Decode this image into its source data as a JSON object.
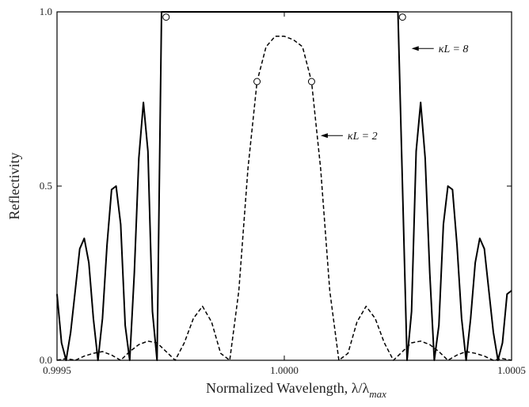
{
  "chart_data": {
    "type": "line",
    "title": "",
    "xlabel": "Normalized Wavelength, λ/λ",
    "xlabel_sub": "max",
    "ylabel": "Reflectivity",
    "xlim": [
      0.9995,
      1.0005
    ],
    "ylim": [
      0.0,
      1.0
    ],
    "x_ticks": [
      0.9995,
      1.0,
      1.0005
    ],
    "x_tick_labels": [
      "0.9995",
      "1.0000",
      "1.0005"
    ],
    "y_ticks": [
      0.0,
      0.5,
      1.0
    ],
    "y_tick_labels": [
      "0.0",
      "0.5",
      "1.0"
    ],
    "grid": false,
    "legend": "none",
    "series": [
      {
        "style": "solid",
        "color": "#000000",
        "kL": 8,
        "x": [
          0.9995,
          0.99951,
          0.99952,
          0.99953,
          0.99954,
          0.99955,
          0.99956,
          0.99957,
          0.99958,
          0.99959,
          0.9996,
          0.99961,
          0.99962,
          0.99963,
          0.99964,
          0.99965,
          0.99966,
          0.99967,
          0.99968,
          0.99969,
          0.9997,
          0.99971,
          0.99972,
          0.99973,
          0.99975,
          0.9998,
          0.9999,
          1.0,
          1.0001,
          1.0002,
          1.00025,
          1.00027,
          1.00028,
          1.00029,
          1.0003,
          1.00031,
          1.00032,
          1.00033,
          1.00034,
          1.00035,
          1.00036,
          1.00037,
          1.00038,
          1.00039,
          1.0004,
          1.00041,
          1.00042,
          1.00043,
          1.00044,
          1.00045,
          1.00046,
          1.00047,
          1.00048,
          1.00049,
          1.0005
        ],
        "y": [
          0.19,
          0.05,
          0.0,
          0.08,
          0.2,
          0.32,
          0.35,
          0.28,
          0.12,
          0.0,
          0.12,
          0.33,
          0.49,
          0.5,
          0.39,
          0.1,
          0.0,
          0.25,
          0.58,
          0.74,
          0.6,
          0.14,
          0.0,
          1.0,
          1.0,
          1.0,
          1.0,
          1.0,
          1.0,
          1.0,
          1.0,
          0.0,
          0.14,
          0.6,
          0.74,
          0.58,
          0.25,
          0.0,
          0.1,
          0.39,
          0.5,
          0.49,
          0.33,
          0.12,
          0.0,
          0.12,
          0.28,
          0.35,
          0.32,
          0.2,
          0.08,
          0.0,
          0.05,
          0.19,
          0.2
        ]
      },
      {
        "style": "dashed",
        "color": "#000000",
        "kL": 2,
        "x": [
          0.9995,
          0.99952,
          0.99954,
          0.99956,
          0.99958,
          0.9996,
          0.99962,
          0.99964,
          0.99966,
          0.99968,
          0.9997,
          0.99972,
          0.99974,
          0.99976,
          0.99978,
          0.9998,
          0.99982,
          0.99984,
          0.99986,
          0.99988,
          0.9999,
          0.99992,
          0.99994,
          0.99996,
          0.99998,
          1.0,
          1.00002,
          1.00004,
          1.00006,
          1.00008,
          1.0001,
          1.00012,
          1.00014,
          1.00016,
          1.00018,
          1.0002,
          1.00022,
          1.00024,
          1.00026,
          1.00028,
          1.0003,
          1.00032,
          1.00034,
          1.00036,
          1.00038,
          1.0004,
          1.00042,
          1.00044,
          1.00046,
          1.00048,
          1.0005
        ],
        "y": [
          0.0,
          0.005,
          0.0,
          0.012,
          0.02,
          0.025,
          0.015,
          0.0,
          0.025,
          0.045,
          0.055,
          0.05,
          0.025,
          0.0,
          0.05,
          0.12,
          0.155,
          0.11,
          0.02,
          0.0,
          0.2,
          0.55,
          0.8,
          0.9,
          0.93,
          0.93,
          0.92,
          0.9,
          0.8,
          0.55,
          0.2,
          0.0,
          0.02,
          0.11,
          0.155,
          0.12,
          0.05,
          0.0,
          0.025,
          0.05,
          0.055,
          0.045,
          0.025,
          0.0,
          0.015,
          0.025,
          0.02,
          0.012,
          0.0,
          0.005,
          0.0
        ]
      }
    ],
    "markers": [
      {
        "x": 0.99974,
        "y": 0.985
      },
      {
        "x": 1.00026,
        "y": 0.985
      },
      {
        "x": 0.99994,
        "y": 0.8
      },
      {
        "x": 1.00006,
        "y": 0.8
      }
    ],
    "annotations": [
      {
        "text": "κL = 8",
        "target_x": 1.00028,
        "target_y": 0.895
      },
      {
        "text": "κL = 2",
        "target_x": 1.00008,
        "target_y": 0.645
      }
    ]
  }
}
